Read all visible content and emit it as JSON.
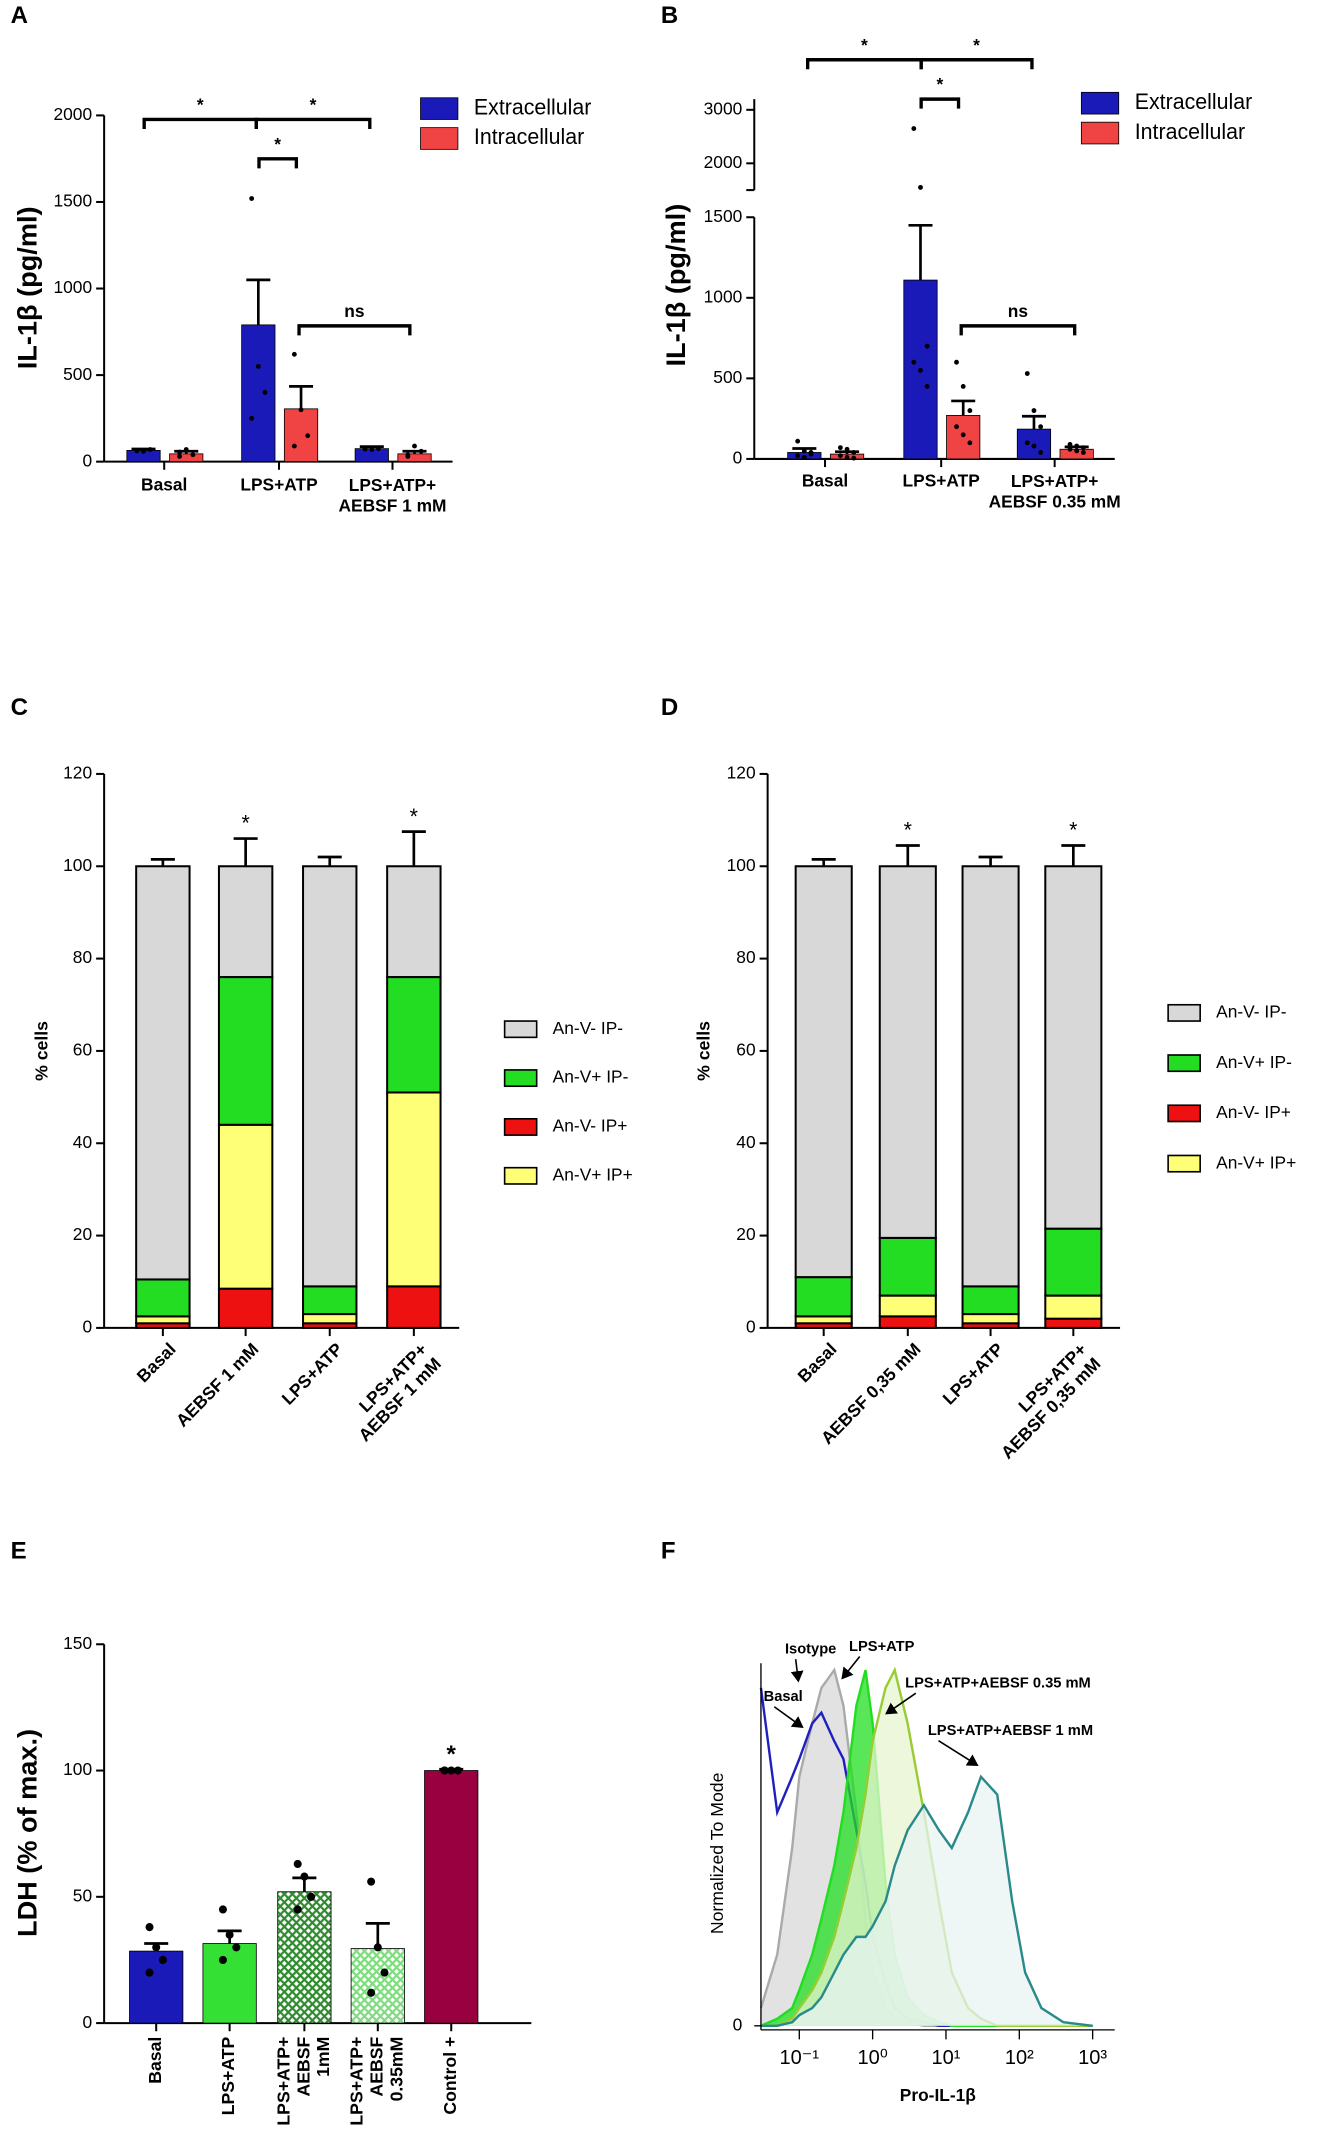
{
  "chart_data": [
    {
      "type": "bar",
      "panel": "A",
      "ylabel": "IL-1β (pg/ml)",
      "categories": [
        "Basal",
        "LPS+ATP",
        "LPS+ATP+\nAEBSF 1 mM"
      ],
      "series": [
        {
          "name": "Extracellular",
          "color": "#1a1ab8",
          "values": [
            65,
            790,
            75
          ],
          "errors": [
            8,
            260,
            12
          ],
          "points": [
            [
              65,
              60,
              70,
              62
            ],
            [
              1520,
              550,
              400,
              250
            ],
            [
              80,
              70,
              75,
              72
            ]
          ]
        },
        {
          "name": "Intracellular",
          "color": "#f04444",
          "values": [
            45,
            305,
            45
          ],
          "errors": [
            15,
            130,
            15
          ],
          "points": [
            [
              30,
              70,
              40,
              55
            ],
            [
              620,
              300,
              150,
              90
            ],
            [
              30,
              90,
              60,
              40
            ]
          ]
        }
      ],
      "ylim": [
        0,
        2000
      ],
      "yticks": [
        0,
        500,
        1000,
        1500,
        2000
      ],
      "significance": [
        "*",
        "*",
        "*",
        "ns"
      ]
    },
    {
      "type": "bar",
      "panel": "B",
      "ylabel": "IL-1β (pg/ml)",
      "categories": [
        "Basal",
        "LPS+ATP",
        "LPS+ATP+\nAEBSF 0.35 mM"
      ],
      "series": [
        {
          "name": "Extracellular",
          "color": "#1a1ab8",
          "values": [
            40,
            1110,
            185
          ],
          "errors": [
            25,
            340,
            80
          ],
          "points": [
            [
              110,
              50,
              30,
              20,
              10,
              40
            ],
            [
              2650,
              1550,
              700,
              600,
              550,
              450
            ],
            [
              530,
              300,
              200,
              100,
              80,
              40
            ]
          ]
        },
        {
          "name": "Intracellular",
          "color": "#f04444",
          "values": [
            30,
            270,
            60
          ],
          "errors": [
            15,
            90,
            15
          ],
          "points": [
            [
              70,
              60,
              40,
              20,
              10,
              5
            ],
            [
              600,
              450,
              300,
              200,
              150,
              100
            ],
            [
              90,
              80,
              70,
              60,
              50,
              40
            ]
          ]
        }
      ],
      "ylim": [
        0,
        1500
      ],
      "yticks": [
        0,
        500,
        1000,
        1500
      ],
      "break_ylim": [
        1500,
        3200
      ],
      "break_yticks": [
        2000,
        3000
      ],
      "significance": [
        "*",
        "*",
        "*",
        "ns"
      ]
    },
    {
      "type": "stacked_bar",
      "panel": "C",
      "ylabel": "% cells",
      "categories": [
        "Basal",
        "AEBSF 1 mM",
        "LPS+ATP",
        "LPS+ATP+\nAEBSF 1 mM"
      ],
      "series": [
        {
          "name": "An-V- IP-",
          "color": "#d8d8d8",
          "values": [
            89.5,
            24,
            91,
            24
          ],
          "errors": [
            1.5,
            6,
            2,
            7.5
          ]
        },
        {
          "name": "An-V+ IP-",
          "color": "#22dd22",
          "values": [
            8,
            32,
            6,
            25
          ],
          "errors": [
            1.5,
            5,
            1.5,
            7
          ]
        },
        {
          "name": "An-V- IP+",
          "color": "#ee1111",
          "values": [
            1,
            8.5,
            1,
            9
          ],
          "errors": [
            0.3,
            3.5,
            0.3,
            4
          ]
        },
        {
          "name": "An-V+ IP+",
          "color": "#ffff77",
          "values": [
            1.5,
            35.5,
            2,
            42
          ],
          "errors": [
            0.5,
            8,
            0.5,
            5.5
          ]
        }
      ],
      "ylim": [
        0,
        120
      ],
      "yticks": [
        0,
        20,
        40,
        60,
        80,
        100,
        120
      ],
      "annotations": [
        "*",
        "*"
      ]
    },
    {
      "type": "stacked_bar",
      "panel": "D",
      "ylabel": "% cells",
      "categories": [
        "Basal",
        "AEBSF 0,35 mM",
        "LPS+ATP",
        "LPS+ATP+\nAEBSF 0,35 mM"
      ],
      "series": [
        {
          "name": "An-V- IP-",
          "color": "#d8d8d8",
          "values": [
            89,
            80.5,
            91,
            78.5
          ],
          "errors": [
            1.5,
            4.5,
            2,
            4.5
          ]
        },
        {
          "name": "An-V+ IP-",
          "color": "#22dd22",
          "values": [
            8.5,
            12.5,
            6,
            14.5
          ],
          "errors": [
            1.5,
            3,
            1.5,
            3.5
          ]
        },
        {
          "name": "An-V- IP+",
          "color": "#ee1111",
          "values": [
            1,
            2.5,
            1,
            2
          ],
          "errors": [
            0.3,
            0.6,
            0.3,
            0.5
          ]
        },
        {
          "name": "An-V+ IP+",
          "color": "#ffff77",
          "values": [
            1.5,
            4.5,
            2,
            5
          ],
          "errors": [
            0.5,
            1.5,
            0.5,
            1
          ]
        }
      ],
      "ylim": [
        0,
        120
      ],
      "yticks": [
        0,
        20,
        40,
        60,
        80,
        100,
        120
      ],
      "annotations": [
        "*",
        "*"
      ]
    },
    {
      "type": "bar",
      "panel": "E",
      "ylabel": "LDH (% of max.)",
      "categories": [
        "Basal",
        "LPS+ATP",
        "LPS+ATP+\nAEBSF\n1mM",
        "LPS+ATP+\nAEBSF\n0.35mM",
        "Control +"
      ],
      "values": [
        28.5,
        31.5,
        52,
        29.5,
        100
      ],
      "errors": [
        3,
        5,
        5.5,
        10,
        0.5
      ],
      "colors": [
        "#1a1ab8",
        "#33e033",
        "#2e8b2e",
        "#7ddc7d",
        "#990040"
      ],
      "hatch": [
        false,
        false,
        true,
        true,
        false
      ],
      "points": [
        [
          38,
          30,
          25,
          20
        ],
        [
          45,
          35,
          30,
          25
        ],
        [
          63,
          58,
          50,
          45
        ],
        [
          56,
          30,
          20,
          12
        ],
        [
          100,
          100,
          100,
          100
        ]
      ],
      "ylim": [
        0,
        150
      ],
      "yticks": [
        0,
        50,
        100,
        150
      ],
      "annotations": [
        "*"
      ]
    },
    {
      "type": "line",
      "panel": "F",
      "xlabel": "Pro-IL-1β",
      "ylabel": "Normalized To Mode",
      "xscale": "log",
      "x": [
        0.03,
        0.05,
        0.08,
        0.1,
        0.15,
        0.2,
        0.3,
        0.4,
        0.6,
        0.8,
        1,
        1.5,
        2,
        3,
        5,
        8,
        12,
        20,
        30,
        50,
        80,
        120,
        200,
        400,
        1000
      ],
      "series": [
        {
          "name": "Isotype",
          "color": "#aaaaaa",
          "fill": "#d8d8d8",
          "values": [
            5,
            20,
            50,
            70,
            85,
            95,
            100,
            90,
            60,
            30,
            15,
            5,
            2,
            1,
            0,
            0,
            0,
            0,
            0,
            0,
            0,
            0,
            0,
            0,
            0
          ]
        },
        {
          "name": "Basal",
          "color": "#2020c0",
          "fill": "none",
          "values": [
            95,
            60,
            70,
            75,
            85,
            88,
            80,
            75,
            55,
            40,
            25,
            12,
            5,
            2,
            1,
            0,
            0,
            0,
            0,
            0,
            0,
            0,
            0,
            0,
            0
          ]
        },
        {
          "name": "LPS+ATP",
          "color": "#22dd22",
          "fill": "#22dd22",
          "values": [
            0,
            2,
            5,
            10,
            20,
            30,
            45,
            60,
            90,
            100,
            85,
            40,
            20,
            8,
            3,
            1,
            0,
            0,
            0,
            0,
            0,
            0,
            0,
            0,
            0
          ]
        },
        {
          "name": "LPS+ATP+AEBSF 0.35 mM",
          "color": "#99cc33",
          "fill": "#e6f4d0",
          "values": [
            0,
            0,
            2,
            5,
            10,
            15,
            25,
            35,
            50,
            65,
            80,
            95,
            100,
            85,
            60,
            35,
            15,
            5,
            2,
            0,
            0,
            0,
            0,
            0,
            0
          ]
        },
        {
          "name": "LPS+ATP+AEBSF 1 mM",
          "color": "#2a8a8a",
          "fill": "#e8f3f3",
          "values": [
            0,
            0,
            1,
            3,
            5,
            8,
            15,
            20,
            25,
            25,
            28,
            35,
            45,
            55,
            62,
            55,
            50,
            60,
            70,
            65,
            35,
            15,
            5,
            1,
            0
          ]
        }
      ],
      "xlim": [
        0.03,
        2000
      ],
      "xticks": [
        {
          "value": 0.1,
          "label": "10⁻¹"
        },
        {
          "value": 1,
          "label": "10⁰"
        },
        {
          "value": 10,
          "label": "10¹"
        },
        {
          "value": 100,
          "label": "10²"
        },
        {
          "value": 1000,
          "label": "10³"
        }
      ],
      "ylim": [
        0,
        100
      ],
      "yticks": [
        0
      ]
    }
  ]
}
